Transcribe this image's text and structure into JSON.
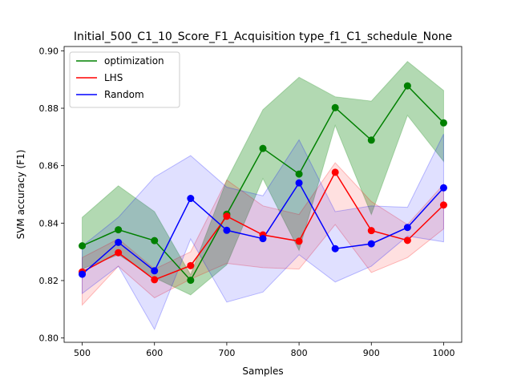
{
  "chart_data": {
    "type": "line",
    "title": "Initial_500_C1_10_Score_F1_Acquisition type_f1_C1_schedule_None",
    "xlabel": "Samples",
    "ylabel": "SVM accuracy (F1)",
    "xlim": [
      475,
      1025
    ],
    "ylim": [
      0.7985,
      0.9015
    ],
    "xticks": [
      500,
      600,
      700,
      800,
      900,
      1000
    ],
    "yticks": [
      0.8,
      0.82,
      0.84,
      0.86,
      0.88,
      0.9
    ],
    "ytick_labels": [
      "0.80",
      "0.82",
      "0.84",
      "0.86",
      "0.88",
      "0.90"
    ],
    "legend_position": "upper-left",
    "grid": false,
    "x": [
      500,
      550,
      600,
      650,
      700,
      750,
      800,
      850,
      900,
      950,
      1000
    ],
    "series": [
      {
        "name": "optimization",
        "color": "#008000",
        "values": [
          0.8321,
          0.8377,
          0.8339,
          0.8201,
          0.8431,
          0.866,
          0.8571,
          0.8802,
          0.8689,
          0.8878,
          0.8749
        ],
        "lower": [
          0.824,
          0.829,
          0.821,
          0.815,
          0.8255,
          0.8555,
          0.8305,
          0.874,
          0.843,
          0.8775,
          0.8615
        ],
        "upper": [
          0.842,
          0.853,
          0.844,
          0.822,
          0.855,
          0.8795,
          0.8908,
          0.884,
          0.8825,
          0.8963,
          0.8862
        ]
      },
      {
        "name": "LHS",
        "color": "#ff0000",
        "values": [
          0.823,
          0.8297,
          0.8203,
          0.8252,
          0.8424,
          0.8359,
          0.8337,
          0.8577,
          0.8374,
          0.834,
          0.8463
        ],
        "lower": [
          0.8115,
          0.825,
          0.814,
          0.8205,
          0.826,
          0.8245,
          0.824,
          0.8395,
          0.8228,
          0.828,
          0.838
        ],
        "upper": [
          0.828,
          0.8345,
          0.824,
          0.83,
          0.855,
          0.846,
          0.843,
          0.861,
          0.8475,
          0.8395,
          0.8535
        ]
      },
      {
        "name": "Random",
        "color": "#0000ff",
        "values": [
          0.8222,
          0.8333,
          0.8234,
          0.8486,
          0.8375,
          0.8346,
          0.854,
          0.8311,
          0.8328,
          0.8385,
          0.8523
        ],
        "lower": [
          0.8155,
          0.825,
          0.803,
          0.8345,
          0.8125,
          0.816,
          0.829,
          0.8195,
          0.825,
          0.8355,
          0.8335
        ],
        "upper": [
          0.832,
          0.842,
          0.856,
          0.8635,
          0.8525,
          0.8495,
          0.869,
          0.844,
          0.846,
          0.8455,
          0.871
        ]
      }
    ]
  }
}
